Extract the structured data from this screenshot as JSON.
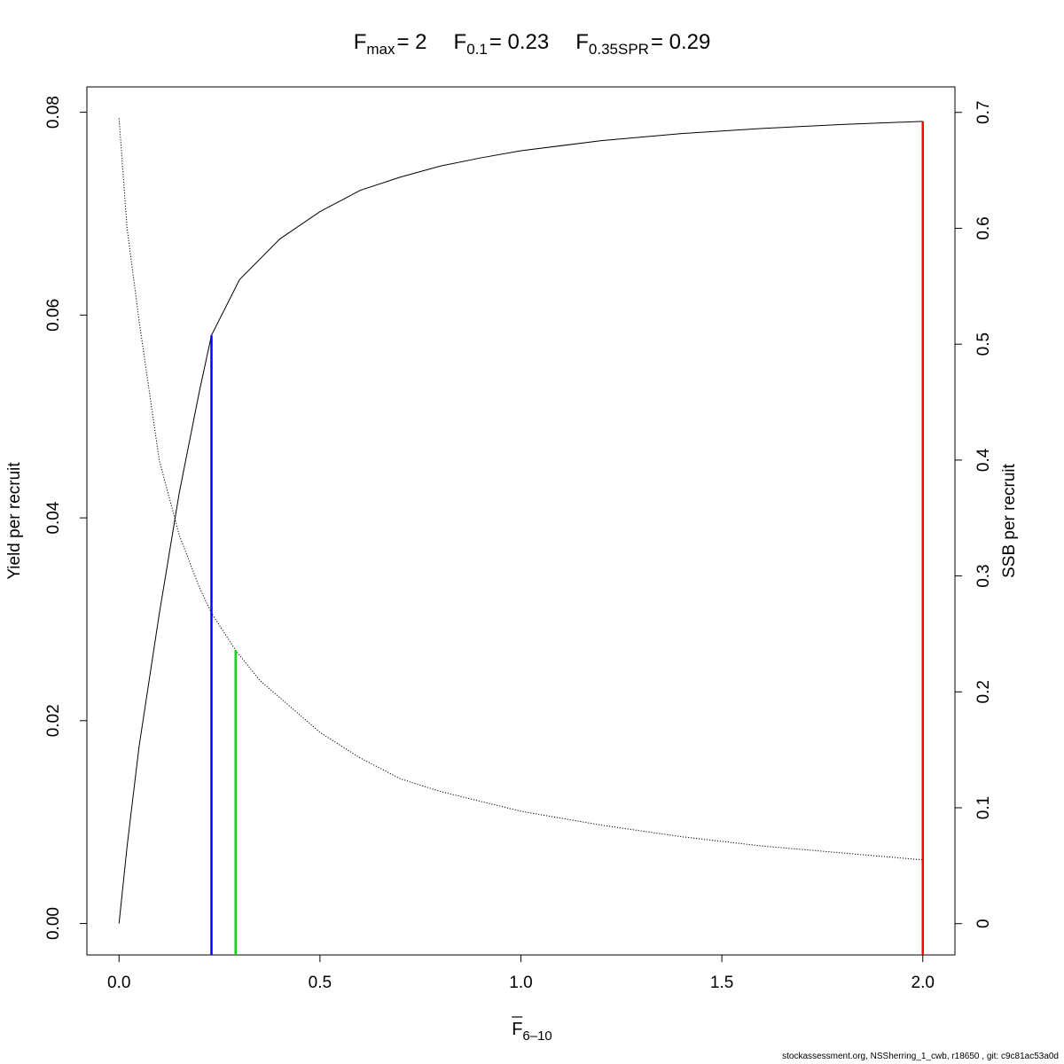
{
  "chart_data": {
    "type": "line",
    "title_parts": {
      "fmax_label": "F",
      "fmax_sub": "max",
      "fmax_value": "= 2",
      "f01_label": "F",
      "f01_sub": "0.1",
      "f01_value": "= 0.23",
      "fspr_label": "F",
      "fspr_sub": "0.35SPR",
      "fspr_value": "= 0.29"
    },
    "xlabel": {
      "main": "F",
      "sub": "6–10",
      "overline": true
    },
    "ylabel_left": "Yield per recruit",
    "ylabel_right": "SSB per recruit",
    "xlim": [
      -0.08,
      2.08
    ],
    "ylim_left": [
      -0.0031,
      0.0825
    ],
    "ylim_right": [
      -0.027,
      0.722
    ],
    "x_ticks": [
      0.0,
      0.5,
      1.0,
      1.5,
      2.0
    ],
    "x_tick_labels": [
      "0.0",
      "0.5",
      "1.0",
      "1.5",
      "2.0"
    ],
    "y_left_ticks": [
      0.0,
      0.02,
      0.04,
      0.06,
      0.08
    ],
    "y_left_tick_labels": [
      "0.00",
      "0.02",
      "0.04",
      "0.06",
      "0.08"
    ],
    "y_right_ticks": [
      0,
      0.1,
      0.2,
      0.3,
      0.4,
      0.5,
      0.6,
      0.7
    ],
    "y_right_tick_labels": [
      "0",
      "0.1",
      "0.2",
      "0.3",
      "0.4",
      "0.5",
      "0.6",
      "0.7"
    ],
    "series": [
      {
        "name": "Yield per recruit",
        "axis": "left",
        "style": "solid",
        "color": "#000000",
        "x": [
          0.0,
          0.02,
          0.05,
          0.1,
          0.15,
          0.2,
          0.23,
          0.3,
          0.4,
          0.5,
          0.6,
          0.7,
          0.8,
          0.9,
          1.0,
          1.2,
          1.4,
          1.6,
          1.8,
          2.0
        ],
        "y": [
          0.0,
          0.0076,
          0.0175,
          0.0305,
          0.0425,
          0.0525,
          0.058,
          0.0635,
          0.0675,
          0.0702,
          0.0723,
          0.0736,
          0.0747,
          0.0755,
          0.0762,
          0.0772,
          0.0779,
          0.0784,
          0.0788,
          0.0791
        ]
      },
      {
        "name": "SSB per recruit",
        "axis": "right",
        "style": "dotted",
        "color": "#000000",
        "x": [
          0.0,
          0.02,
          0.05,
          0.1,
          0.15,
          0.2,
          0.23,
          0.29,
          0.35,
          0.5,
          0.6,
          0.7,
          0.8,
          1.0,
          1.2,
          1.4,
          1.6,
          1.8,
          2.0
        ],
        "y": [
          0.695,
          0.6,
          0.52,
          0.4,
          0.335,
          0.29,
          0.268,
          0.236,
          0.21,
          0.165,
          0.143,
          0.125,
          0.114,
          0.097,
          0.085,
          0.075,
          0.067,
          0.061,
          0.055
        ]
      }
    ],
    "reference_lines": [
      {
        "name": "F0.1",
        "x": 0.23,
        "axis": "left",
        "y_top": 0.058,
        "color": "#0000ff"
      },
      {
        "name": "F0.35SPR",
        "x": 0.29,
        "axis": "right",
        "y_top": 0.236,
        "color": "#00dd00"
      },
      {
        "name": "Fmax",
        "x": 2.0,
        "axis": "left",
        "y_top": 0.0791,
        "color": "#ff0000"
      }
    ]
  },
  "footer": "stockassessment.org, NSSherring_1_cwb, r18650 , git: c9c81ac53a0d"
}
